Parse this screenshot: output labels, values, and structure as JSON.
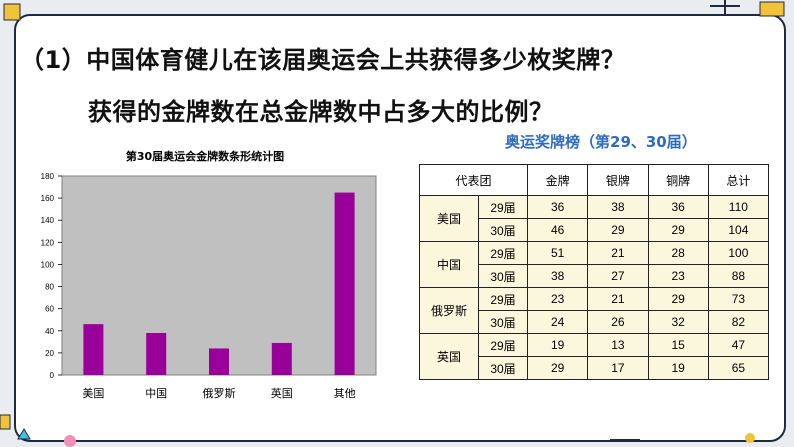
{
  "question_line1": "（1）中国体育健儿在该届奥运会上共获得多少枚奖牌？",
  "question_line2": "获得的金牌数在总金牌数中占多大的比例？",
  "table_title": "奥运奖牌榜（第29、30届）",
  "table": {
    "headers": [
      "代表团",
      "金牌",
      "银牌",
      "铜牌",
      "总计"
    ],
    "rows": [
      {
        "country": "美国",
        "session": "29届",
        "gold": "36",
        "silver": "38",
        "bronze": "36",
        "total": "110"
      },
      {
        "country": "美国",
        "session": "30届",
        "gold": "46",
        "silver": "29",
        "bronze": "29",
        "total": "104"
      },
      {
        "country": "中国",
        "session": "29届",
        "gold": "51",
        "silver": "21",
        "bronze": "28",
        "total": "100"
      },
      {
        "country": "中国",
        "session": "30届",
        "gold": "38",
        "silver": "27",
        "bronze": "23",
        "total": "88"
      },
      {
        "country": "俄罗斯",
        "session": "29届",
        "gold": "23",
        "silver": "21",
        "bronze": "29",
        "total": "73"
      },
      {
        "country": "俄罗斯",
        "session": "30届",
        "gold": "24",
        "silver": "26",
        "bronze": "32",
        "total": "82"
      },
      {
        "country": "英国",
        "session": "29届",
        "gold": "19",
        "silver": "13",
        "bronze": "15",
        "total": "47"
      },
      {
        "country": "英国",
        "session": "30届",
        "gold": "29",
        "silver": "17",
        "bronze": "19",
        "total": "65"
      }
    ]
  },
  "chart_data": {
    "type": "bar",
    "title": "第30届奥运会金牌数条形统计图",
    "categories": [
      "美国",
      "中国",
      "俄罗斯",
      "英国",
      "其他"
    ],
    "values": [
      46,
      38,
      24,
      29,
      165
    ],
    "ylim": [
      0,
      180
    ],
    "yticks": [
      0,
      20,
      40,
      60,
      80,
      100,
      120,
      140,
      160,
      180
    ],
    "grid": false,
    "bar_color": "#990099",
    "plot_background": "#c0c0c0"
  },
  "colors": {
    "frame_border": "#1f2b3d",
    "table_fill": "#fbf7dd",
    "table_title": "#2e6cc0"
  }
}
